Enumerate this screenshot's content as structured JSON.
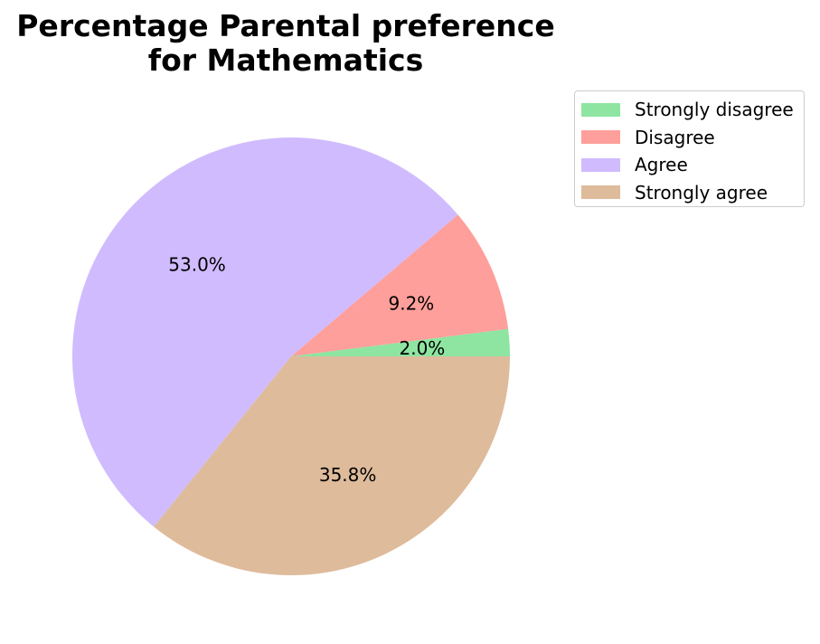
{
  "chart_data": {
    "type": "pie",
    "title_lines": [
      "Percentage Parental preference",
      "for Mathematics"
    ],
    "categories": [
      "Strongly disagree",
      "Disagree",
      "Agree",
      "Strongly agree"
    ],
    "values": [
      2.0,
      9.2,
      53.0,
      35.8
    ],
    "labels": [
      "2.0%",
      "9.2%",
      "53.0%",
      "35.8%"
    ],
    "colors": [
      "#8de5a1",
      "#ff9f9b",
      "#d0bbff",
      "#debb9b"
    ],
    "start_angle_deg": 0,
    "direction": "counterclockwise",
    "legend_position": "upper-right outside"
  }
}
